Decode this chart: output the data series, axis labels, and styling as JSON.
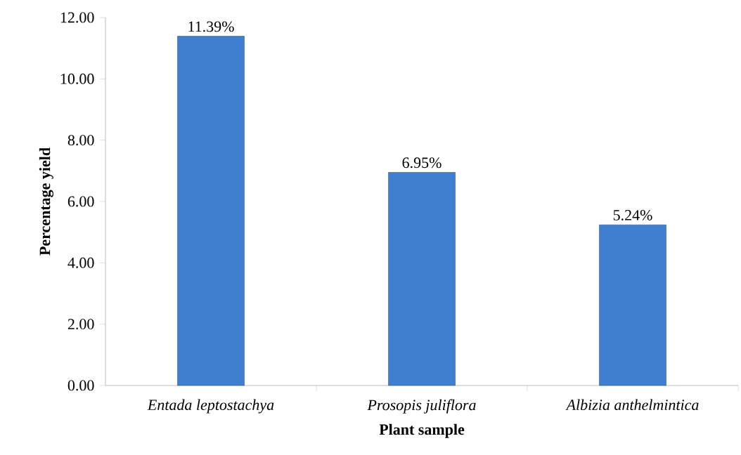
{
  "chart_data": {
    "type": "bar",
    "xlabel": "Plant sample",
    "ylabel": "Percentage yield",
    "categories": [
      "Entada leptostachya",
      "Prosopis juliflora",
      "Albizia anthelmintica"
    ],
    "values": [
      11.39,
      6.95,
      5.24
    ],
    "color": "#3f7fd0",
    "value_labels": [
      "11.39%",
      "6.95%",
      "5.24%"
    ],
    "ylim": [
      0,
      12
    ],
    "yticks": [
      {
        "value": 0,
        "label": "0.00"
      },
      {
        "value": 2,
        "label": "2.00"
      },
      {
        "value": 4,
        "label": "4.00"
      },
      {
        "value": 6,
        "label": "6.00"
      },
      {
        "value": 8,
        "label": "8.00"
      },
      {
        "value": 10,
        "label": "10.00"
      },
      {
        "value": 12,
        "label": "12.00"
      }
    ]
  }
}
